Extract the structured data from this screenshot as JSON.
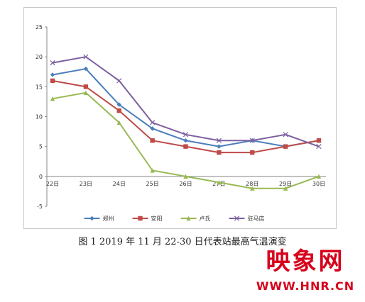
{
  "caption": "图 1  2019 年 11 月 22-30 日代表站最高气温演变",
  "watermark": {
    "logo_text": "映象网",
    "url_text": "WWW.HNR.CN"
  },
  "chart_data": {
    "type": "line",
    "categories": [
      "22日",
      "23日",
      "24日",
      "25日",
      "26日",
      "27日",
      "28日",
      "29日",
      "30日"
    ],
    "ylim": [
      -5,
      25
    ],
    "yticks": [
      -5,
      0,
      5,
      10,
      15,
      20,
      25
    ],
    "grid": false,
    "legend_position": "bottom",
    "series": [
      {
        "name": "郑州",
        "color": "#4a7ebb",
        "marker": "diamond",
        "values": [
          17,
          18,
          12,
          8,
          6,
          5,
          6,
          5,
          6
        ]
      },
      {
        "name": "安阳",
        "color": "#be4b48",
        "marker": "square",
        "values": [
          16,
          15,
          11,
          6,
          5,
          4,
          4,
          5,
          6
        ]
      },
      {
        "name": "卢氏",
        "color": "#98b954",
        "marker": "triangle",
        "values": [
          13,
          14,
          9,
          1,
          0,
          -1,
          -2,
          -2,
          0
        ]
      },
      {
        "name": "驻马店",
        "color": "#7d60a0",
        "marker": "x",
        "values": [
          19,
          20,
          16,
          9,
          7,
          6,
          6,
          7,
          5
        ]
      }
    ]
  }
}
